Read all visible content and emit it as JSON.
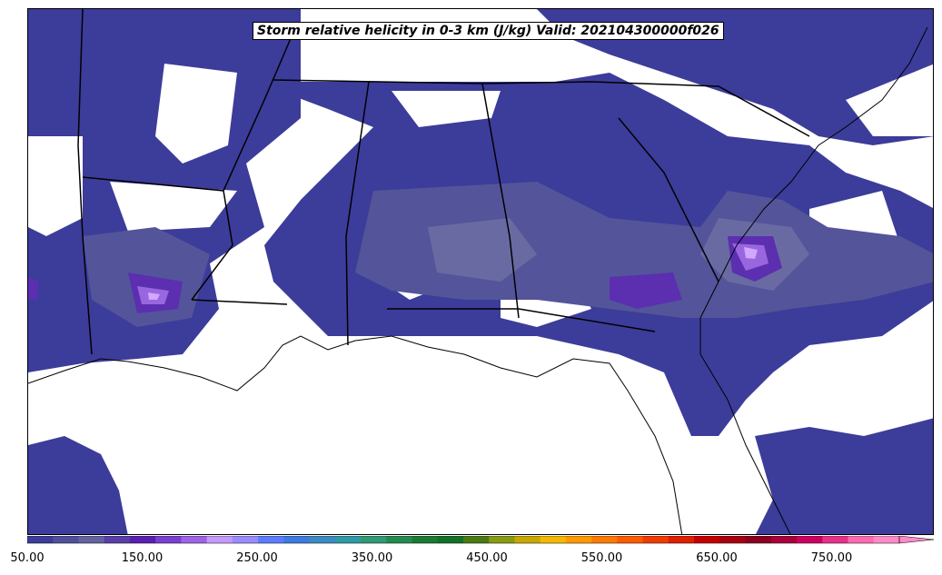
{
  "map": {
    "title": "Storm relative helicity in 0-3 km (J/kg) Valid: 202104300000f026",
    "field_colors": {
      "level1": "#3c3c9a",
      "level2": "#54549a",
      "level3": "#6a6aa3",
      "level4": "#5b2fb0",
      "level5": "#9a66e0",
      "level6": "#d0a8ff",
      "coast": "#000000",
      "background": "#ffffff"
    }
  },
  "colorbar": {
    "tick_labels": [
      "50.00",
      "150.00",
      "250.00",
      "350.00",
      "450.00",
      "550.00",
      "650.00",
      "750.00"
    ],
    "extend": "max",
    "colors": [
      "#3c3c9a",
      "#4f4f9c",
      "#63639f",
      "#5a3ea8",
      "#5a1fb0",
      "#7a3fd0",
      "#9e63e6",
      "#c49aff",
      "#9a8cff",
      "#5c7cff",
      "#3d7be0",
      "#3b8ac2",
      "#2f9aa5",
      "#2f9a74",
      "#258a4f",
      "#1a7a32",
      "#137028",
      "#4a7a14",
      "#8a9a12",
      "#c8a800",
      "#f5b800",
      "#ff9a00",
      "#ff7a00",
      "#ff5a00",
      "#f03c00",
      "#e01e00",
      "#c40000",
      "#a80010",
      "#8a0020",
      "#a8003a",
      "#cc0060",
      "#e8308a",
      "#ff6ab0",
      "#ff8ac8"
    ]
  }
}
